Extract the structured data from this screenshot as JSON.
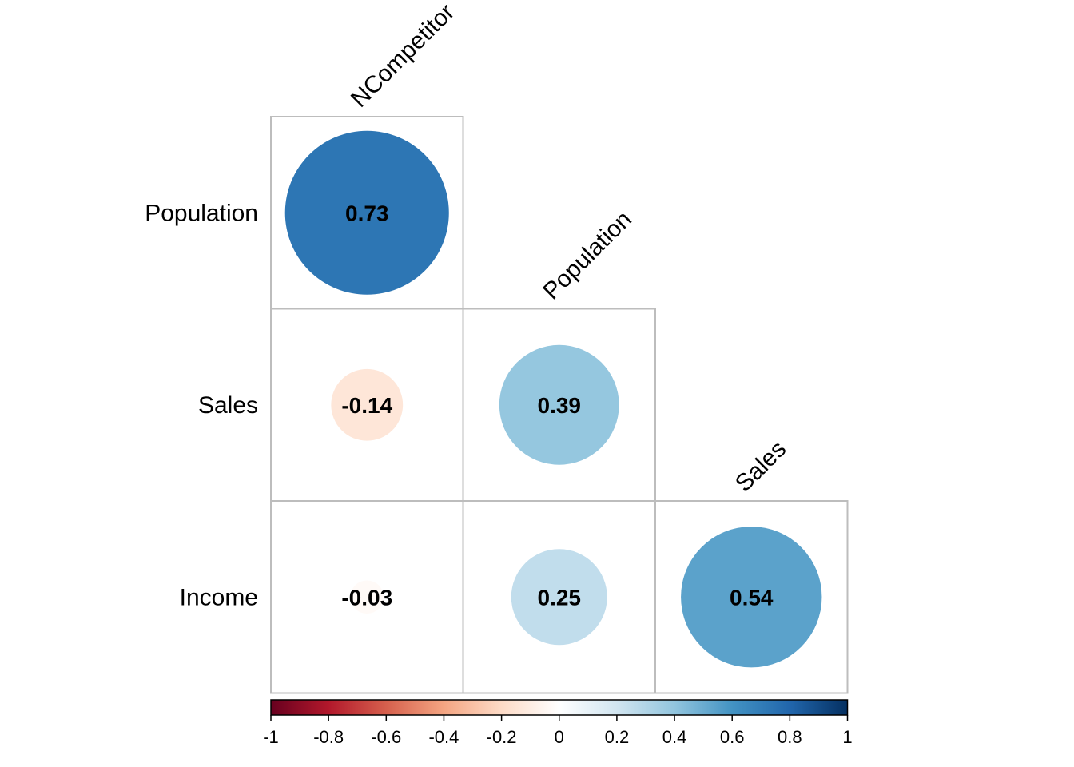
{
  "chart_data": {
    "type": "heatmap",
    "style": "correlation-matrix-circles-lower-triangle",
    "row_labels": [
      "Population",
      "Sales",
      "Income"
    ],
    "col_labels": [
      "NCompetitor",
      "Population",
      "Sales"
    ],
    "cells": [
      {
        "row": 0,
        "col": 0,
        "value": 0.73,
        "label": "0.73"
      },
      {
        "row": 1,
        "col": 0,
        "value": -0.14,
        "label": "-0.14"
      },
      {
        "row": 1,
        "col": 1,
        "value": 0.39,
        "label": "0.39"
      },
      {
        "row": 2,
        "col": 0,
        "value": -0.03,
        "label": "-0.03"
      },
      {
        "row": 2,
        "col": 1,
        "value": 0.25,
        "label": "0.25"
      },
      {
        "row": 2,
        "col": 2,
        "value": 0.54,
        "label": "0.54"
      }
    ],
    "color_scale": {
      "range": [
        -1,
        1
      ],
      "ticks": [
        -1,
        -0.8,
        -0.6,
        -0.4,
        -0.2,
        0,
        0.2,
        0.4,
        0.6,
        0.8,
        1
      ],
      "tick_labels": [
        "-1",
        "-0.8",
        "-0.6",
        "-0.4",
        "-0.2",
        "0",
        "0.2",
        "0.4",
        "0.6",
        "0.8",
        "1"
      ],
      "colors": [
        "#67001f",
        "#b2182b",
        "#d6604d",
        "#f4a582",
        "#fddbc7",
        "#ffffff",
        "#d1e5f0",
        "#92c5de",
        "#4393c3",
        "#2166ac",
        "#053061"
      ],
      "placement": "bottom"
    }
  }
}
